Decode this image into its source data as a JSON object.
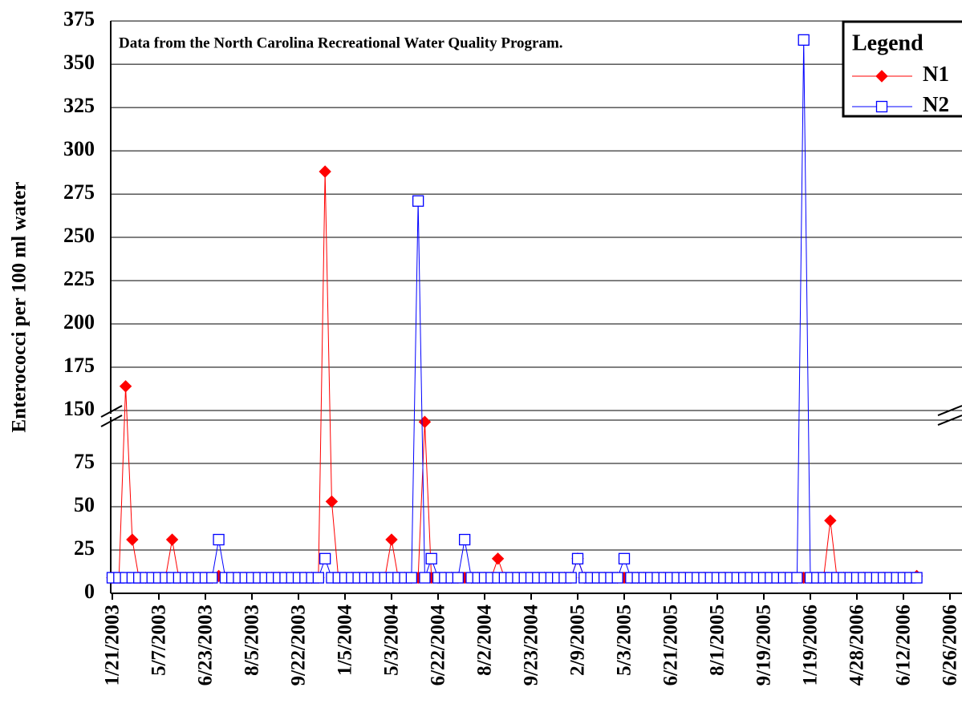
{
  "chart_data": {
    "type": "line",
    "annotation": "Data from the North Carolina Recreational Water Quality Program.",
    "y_label": "Enterococci per 100 ml water",
    "legend_title": "Legend",
    "legend": "upper right",
    "categories": [
      "1/21/2003",
      null,
      null,
      null,
      null,
      null,
      null,
      "5/7/2003",
      null,
      null,
      null,
      null,
      null,
      null,
      "6/23/2003",
      null,
      null,
      null,
      null,
      null,
      null,
      "8/5/2003",
      null,
      null,
      null,
      null,
      null,
      null,
      "9/22/2003",
      null,
      null,
      null,
      null,
      null,
      null,
      "1/5/2004",
      null,
      null,
      null,
      null,
      null,
      null,
      "5/3/2004",
      null,
      null,
      null,
      null,
      null,
      null,
      "6/22/2004",
      null,
      null,
      null,
      null,
      null,
      null,
      "8/2/2004",
      null,
      null,
      null,
      null,
      null,
      null,
      "9/23/2004",
      null,
      null,
      null,
      null,
      null,
      null,
      "2/9/2005",
      null,
      null,
      null,
      null,
      null,
      null,
      "5/3/2005",
      null,
      null,
      null,
      null,
      null,
      null,
      "6/21/2005",
      null,
      null,
      null,
      null,
      null,
      null,
      "8/1/2005",
      null,
      null,
      null,
      null,
      null,
      null,
      "9/19/2005",
      null,
      null,
      null,
      null,
      null,
      null,
      "1/19/2006",
      null,
      null,
      null,
      null,
      null,
      null,
      "4/28/2006",
      null,
      null,
      null,
      null,
      null,
      null,
      "6/12/2006",
      null,
      null,
      null,
      null,
      null,
      null,
      "6/26/2006"
    ],
    "series": [
      {
        "name": "N1",
        "color": "#ff0000",
        "marker": "diamond",
        "values": [
          9,
          9,
          164,
          31,
          9,
          9,
          9,
          9,
          9,
          31,
          9,
          9,
          9,
          9,
          9,
          9,
          10,
          9,
          9,
          9,
          9,
          9,
          9,
          9,
          9,
          9,
          9,
          9,
          9,
          9,
          9,
          9,
          288,
          53,
          9,
          9,
          9,
          9,
          9,
          9,
          9,
          9,
          31,
          9,
          9,
          9,
          9,
          99,
          9,
          9,
          9,
          9,
          9,
          9,
          9,
          9,
          9,
          9,
          20,
          9,
          9,
          9,
          9,
          9,
          9,
          9,
          9,
          9,
          9,
          9,
          20,
          9,
          9,
          9,
          9,
          9,
          9,
          9,
          9,
          9,
          9,
          9,
          9,
          9,
          9,
          9,
          9,
          9,
          9,
          9,
          9,
          9,
          9,
          9,
          9,
          9,
          9,
          9,
          9,
          9,
          9,
          9,
          9,
          9,
          9,
          9,
          9,
          9,
          42,
          9,
          9,
          9,
          9,
          9,
          9,
          9,
          9,
          9,
          9,
          9,
          9,
          10,
          null,
          null,
          null,
          null,
          null
        ]
      },
      {
        "name": "N2",
        "color": "#0000ff",
        "marker": "square",
        "values": [
          9,
          9,
          9,
          9,
          9,
          9,
          9,
          9,
          9,
          9,
          9,
          9,
          9,
          9,
          9,
          9,
          31,
          9,
          9,
          9,
          9,
          9,
          9,
          9,
          9,
          9,
          9,
          9,
          9,
          9,
          9,
          9,
          20,
          9,
          9,
          9,
          9,
          9,
          9,
          9,
          9,
          9,
          9,
          9,
          9,
          9,
          271,
          9,
          20,
          9,
          9,
          9,
          9,
          31,
          9,
          9,
          9,
          9,
          9,
          9,
          9,
          9,
          9,
          9,
          9,
          9,
          9,
          9,
          9,
          9,
          20,
          9,
          9,
          9,
          9,
          9,
          9,
          20,
          9,
          9,
          9,
          9,
          9,
          9,
          9,
          9,
          9,
          9,
          9,
          9,
          9,
          9,
          9,
          9,
          9,
          9,
          9,
          9,
          9,
          9,
          9,
          9,
          9,
          9,
          364,
          9,
          9,
          9,
          9,
          9,
          9,
          9,
          9,
          9,
          9,
          9,
          9,
          9,
          9,
          9,
          9,
          9,
          null,
          null,
          null,
          null,
          null
        ]
      }
    ],
    "ylim": [
      0,
      375
    ],
    "ybreak": [
      100,
      150
    ],
    "yticks": [
      0,
      25,
      50,
      75,
      150,
      175,
      200,
      225,
      250,
      275,
      300,
      325,
      350,
      375
    ],
    "grid": true
  }
}
